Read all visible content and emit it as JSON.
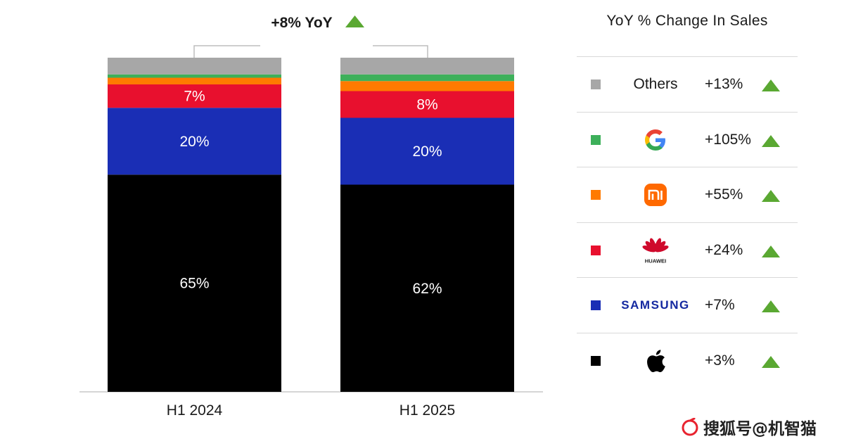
{
  "chart_data": {
    "type": "bar",
    "stacked": true,
    "categories": [
      "H1 2024",
      "H1 2025"
    ],
    "series": [
      {
        "key": "apple",
        "color": "#000000",
        "values": [
          65,
          62
        ],
        "labels": [
          "65%",
          "62%"
        ]
      },
      {
        "key": "samsung",
        "color": "#1a2eb5",
        "values": [
          20,
          20
        ],
        "labels": [
          "20%",
          "20%"
        ]
      },
      {
        "key": "huawei",
        "color": "#e8102e",
        "values": [
          7,
          8
        ],
        "labels": [
          "7%",
          "8%"
        ]
      },
      {
        "key": "xiaomi",
        "color": "#ff7a00",
        "values": [
          2,
          3
        ],
        "labels": [
          "",
          ""
        ]
      },
      {
        "key": "google",
        "color": "#3db05a",
        "values": [
          1,
          2
        ],
        "labels": [
          "",
          ""
        ]
      },
      {
        "key": "others",
        "color": "#a7a7a7",
        "values": [
          5,
          5
        ],
        "labels": [
          "",
          ""
        ]
      }
    ],
    "ylim": [
      0,
      100
    ],
    "total_change": "+8% YoY",
    "legend_title": "YoY % Change In Sales",
    "legend": [
      {
        "key": "others",
        "name": "Others",
        "change": "+13%",
        "color": "#a7a7a7",
        "icon": "others-text"
      },
      {
        "key": "google",
        "name": "",
        "change": "+105%",
        "color": "#3db05a",
        "icon": "google-logo-icon"
      },
      {
        "key": "xiaomi",
        "name": "mi",
        "change": "+55%",
        "color": "#ff7a00",
        "icon": "xiaomi-logo-icon"
      },
      {
        "key": "huawei",
        "name": "HUAWEI",
        "change": "+24%",
        "color": "#e8102e",
        "icon": "huawei-logo-icon"
      },
      {
        "key": "samsung",
        "name": "SAMSUNG",
        "change": "+7%",
        "color": "#1a2eb5",
        "icon": "samsung-wordmark"
      },
      {
        "key": "apple",
        "name": "",
        "change": "+3%",
        "color": "#000000",
        "icon": "apple-logo-icon"
      }
    ],
    "arrow_color": "#5aa832",
    "legend_placement": "right",
    "grid": false
  },
  "watermark": {
    "text": "搜狐号@机智猫"
  }
}
